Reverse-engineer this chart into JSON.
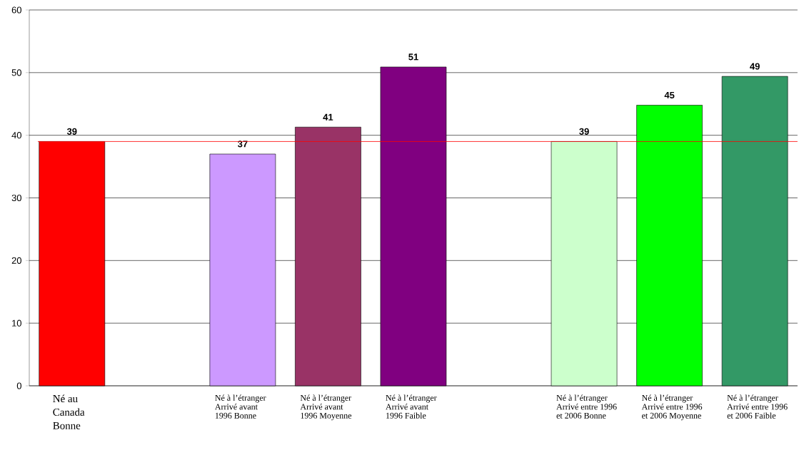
{
  "chart_data": {
    "type": "bar",
    "categories": [
      "Né au Canada Bonne",
      null,
      "Né à l’étranger Arrivé avant 1996 Bonne",
      "Né à l’étranger Arrivé avant 1996 Moyenne",
      "Né à l’étranger Arrivé avant 1996 Faible",
      null,
      "Né à l’étranger Arrivé entre 1996 et 2006 Bonne",
      "Né à l’étranger Arrivé entre 1996 et 2006 Moyenne",
      "Né à l’étranger Arrivé entre 1996 et 2006 Faible"
    ],
    "values": [
      39,
      null,
      37,
      41.3,
      50.9,
      null,
      39,
      44.8,
      49.4
    ],
    "value_labels": [
      "39",
      null,
      "37",
      "41",
      "51",
      null,
      "39",
      "45",
      "49"
    ],
    "colors": [
      "#ff0000",
      null,
      "#cc99ff",
      "#993366",
      "#800080",
      null,
      "#ccffcc",
      "#00ff00",
      "#339966"
    ],
    "ylim": [
      0,
      60
    ],
    "yticks": [
      0,
      10,
      20,
      30,
      40,
      50,
      60
    ],
    "grid": "y",
    "ref_lines": [
      {
        "axis": "y",
        "value": 39,
        "color": "#ff0000"
      }
    ]
  }
}
